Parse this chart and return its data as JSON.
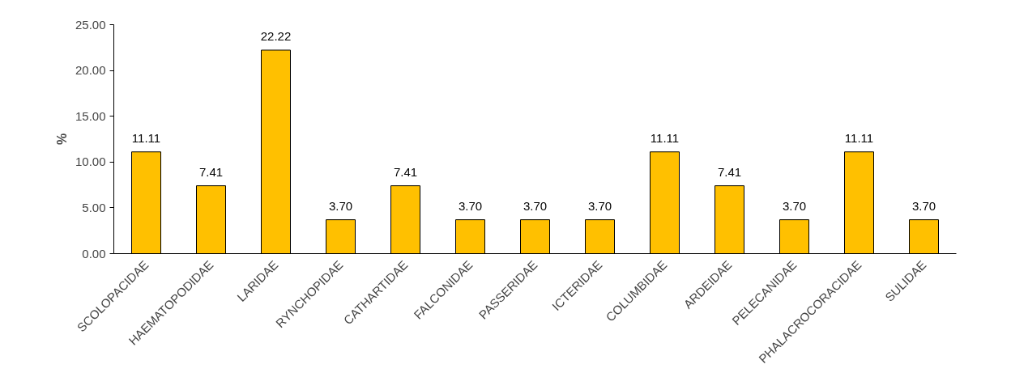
{
  "chart_data": {
    "type": "bar",
    "ylabel": "%",
    "categories": [
      "SCOLOPACIDAE",
      "HAEMATOPODIDAE",
      "LARIDAE",
      "RYNCHOPIDAE",
      "CATHARTIDAE",
      "FALCONIDAE",
      "PASSERIDAE",
      "ICTERIDAE",
      "COLUMBIDAE",
      "ARDEIDAE",
      "PELECANIDAE",
      "PHALACROCORACIDAE",
      "SULIDAE"
    ],
    "values": [
      11.11,
      7.41,
      22.22,
      3.7,
      7.41,
      3.7,
      3.7,
      3.7,
      11.11,
      7.41,
      3.7,
      11.11,
      3.7
    ],
    "value_labels": [
      "11.11",
      "7.41",
      "22.22",
      "3.70",
      "7.41",
      "3.70",
      "3.70",
      "3.70",
      "11.11",
      "7.41",
      "3.70",
      "11.11",
      "3.70"
    ],
    "color": "#ffc000",
    "ylim": [
      0,
      25
    ],
    "yticks": [
      {
        "value": 0,
        "label": "0.00"
      },
      {
        "value": 5,
        "label": "5.00"
      },
      {
        "value": 10,
        "label": "10.00"
      },
      {
        "value": 15,
        "label": "15.00"
      },
      {
        "value": 20,
        "label": "20.00"
      },
      {
        "value": 25,
        "label": "25.00"
      }
    ],
    "grid": false
  }
}
